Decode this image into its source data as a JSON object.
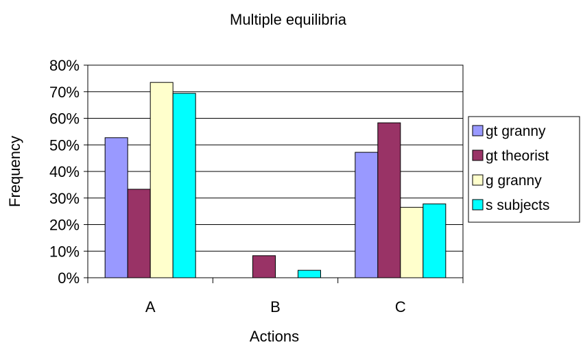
{
  "chart_data": {
    "type": "bar",
    "title": "Multiple equilibria",
    "xlabel": "Actions",
    "ylabel": "Frequency",
    "categories": [
      "A",
      "B",
      "C"
    ],
    "ylim": [
      0,
      0.8
    ],
    "yticks": [
      0,
      0.1,
      0.2,
      0.3,
      0.4,
      0.5,
      0.6,
      0.7,
      0.8
    ],
    "ytick_labels": [
      "0%",
      "10%",
      "20%",
      "30%",
      "40%",
      "50%",
      "60%",
      "70%",
      "80%"
    ],
    "grid": true,
    "legend_position": "right",
    "series": [
      {
        "name": "gt granny",
        "color": "#9999ff",
        "values": [
          0.527,
          0.0,
          0.472
        ]
      },
      {
        "name": "gt theorist",
        "color": "#993366",
        "values": [
          0.333,
          0.083,
          0.583
        ]
      },
      {
        "name": "g granny",
        "color": "#ffffcc",
        "values": [
          0.735,
          0.0,
          0.265
        ]
      },
      {
        "name": "s subjects",
        "color": "#00ffff",
        "values": [
          0.694,
          0.028,
          0.278
        ]
      }
    ]
  }
}
